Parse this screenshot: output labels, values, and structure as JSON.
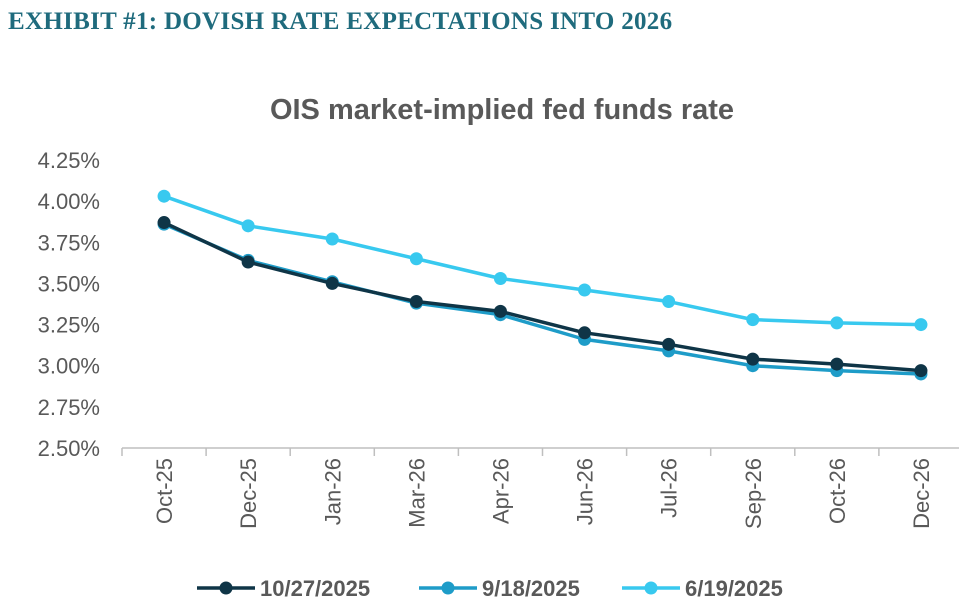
{
  "header": {
    "exhibit_title": "EXHIBIT #1:  DOVISH RATE EXPECTATIONS INTO 2026"
  },
  "chart_data": {
    "type": "line",
    "title": "OIS market-implied fed funds rate",
    "xlabel": "",
    "ylabel": "",
    "categories": [
      "Oct-25",
      "Dec-25",
      "Jan-26",
      "Mar-26",
      "Apr-26",
      "Jun-26",
      "Jul-26",
      "Sep-26",
      "Oct-26",
      "Dec-26"
    ],
    "ylim": [
      2.5,
      4.25
    ],
    "yticks": [
      "2.50%",
      "2.75%",
      "3.00%",
      "3.25%",
      "3.50%",
      "3.75%",
      "4.00%",
      "4.25%"
    ],
    "grid": false,
    "legend_position": "bottom",
    "series": [
      {
        "name": "10/27/2025",
        "color": "#0f3547",
        "values": [
          3.87,
          3.63,
          3.5,
          3.39,
          3.33,
          3.2,
          3.13,
          3.04,
          3.01,
          2.97
        ]
      },
      {
        "name": "9/18/2025",
        "color": "#1e9cc8",
        "values": [
          3.86,
          3.64,
          3.51,
          3.38,
          3.31,
          3.16,
          3.09,
          3.0,
          2.97,
          2.95
        ]
      },
      {
        "name": "6/19/2025",
        "color": "#38c9ef",
        "values": [
          4.03,
          3.85,
          3.77,
          3.65,
          3.53,
          3.46,
          3.39,
          3.28,
          3.26,
          3.25
        ]
      }
    ]
  }
}
